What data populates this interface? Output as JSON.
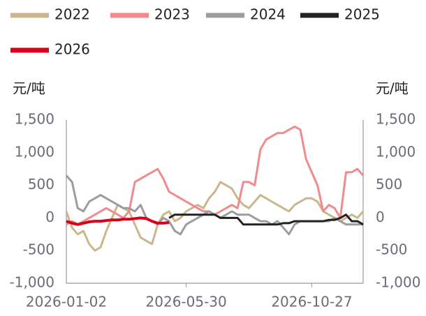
{
  "chart_data": {
    "type": "line",
    "y_label": "元/吨",
    "y2_label": "元/吨",
    "categories": [
      "2026-01-02",
      null,
      null,
      null,
      null,
      null,
      null,
      null,
      null,
      null,
      null,
      null,
      null,
      null,
      null,
      null,
      null,
      null,
      null,
      null,
      null,
      "2026-05-30",
      null,
      null,
      null,
      null,
      null,
      null,
      null,
      null,
      null,
      null,
      null,
      null,
      null,
      null,
      null,
      null,
      null,
      null,
      null,
      null,
      null,
      "2026-10-27",
      null,
      null,
      null,
      null,
      null,
      null,
      null,
      null,
      null
    ],
    "ylim": [
      -1000,
      1500
    ],
    "yticks": [
      {
        "value": -1000,
        "label": "-1,000"
      },
      -500,
      0,
      500,
      {
        "value": 1000,
        "label": "1,000"
      },
      {
        "value": 1500,
        "label": "1,500"
      }
    ],
    "y2lim": [
      -1000,
      1500
    ],
    "y2ticks": [
      {
        "value": -1000,
        "label": "-1,000"
      },
      -500,
      0,
      500,
      {
        "value": 1000,
        "label": "1,000"
      },
      {
        "value": 1500,
        "label": "1,500"
      }
    ],
    "grid": false,
    "series": [
      {
        "name": "2022",
        "color": "#cbb68c",
        "values": [
          100,
          -150,
          -250,
          -200,
          -400,
          -500,
          -450,
          -200,
          0,
          200,
          150,
          100,
          -100,
          -300,
          -350,
          -400,
          -100,
          50,
          100,
          -50,
          0,
          100,
          150,
          200,
          150,
          300,
          400,
          550,
          500,
          450,
          300,
          200,
          150,
          250,
          350,
          300,
          250,
          200,
          150,
          100,
          200,
          250,
          300,
          300,
          250,
          100,
          50,
          0,
          -50,
          0,
          50,
          0,
          100
        ]
      },
      {
        "name": "2023",
        "color": "#f08a8d",
        "values": [
          -100,
          -50,
          -100,
          -50,
          0,
          50,
          100,
          150,
          100,
          50,
          0,
          100,
          550,
          600,
          650,
          700,
          750,
          600,
          400,
          350,
          300,
          250,
          200,
          150,
          100,
          100,
          50,
          100,
          150,
          200,
          150,
          550,
          550,
          500,
          1050,
          1200,
          1250,
          1300,
          1300,
          1350,
          1400,
          1350,
          900,
          700,
          500,
          100,
          200,
          150,
          0,
          700,
          700,
          750,
          650
        ]
      },
      {
        "name": "2024",
        "color": "#9c9c9c",
        "values": [
          650,
          550,
          150,
          100,
          250,
          300,
          350,
          300,
          250,
          200,
          150,
          150,
          100,
          200,
          0,
          -50,
          -100,
          0,
          -50,
          -200,
          -250,
          -100,
          -50,
          0,
          50,
          100,
          50,
          0,
          50,
          100,
          50,
          50,
          50,
          0,
          -50,
          -50,
          -100,
          -50,
          -150,
          -250,
          -100,
          -50,
          -50,
          -50,
          -50,
          -50,
          -50,
          0,
          -50,
          -100,
          -100,
          -100,
          -100
        ]
      },
      {
        "name": "2025",
        "color": "#222222",
        "values": [
          null,
          null,
          null,
          null,
          null,
          null,
          null,
          null,
          null,
          null,
          null,
          null,
          null,
          null,
          null,
          null,
          null,
          null,
          0,
          50,
          50,
          50,
          50,
          50,
          50,
          50,
          50,
          0,
          0,
          0,
          0,
          -100,
          -100,
          -100,
          -100,
          -100,
          -100,
          -100,
          -80,
          -80,
          -50,
          -50,
          -50,
          -50,
          -50,
          -50,
          -30,
          -30,
          0,
          50,
          -50,
          -50,
          -100
        ]
      },
      {
        "name": "2026",
        "color": "#d9001b",
        "values": [
          -50,
          -80,
          -100,
          -80,
          -60,
          -50,
          -50,
          -40,
          -30,
          -30,
          -20,
          -20,
          -10,
          0,
          -10,
          -50,
          -80,
          -80,
          -70,
          null,
          null,
          null,
          null,
          null,
          null,
          null,
          null,
          null,
          null,
          null,
          null,
          null,
          null,
          null,
          null,
          null,
          null,
          null,
          null,
          null,
          null,
          null,
          null,
          null,
          null,
          null,
          null,
          null,
          null,
          null,
          null,
          null,
          null
        ]
      }
    ]
  }
}
